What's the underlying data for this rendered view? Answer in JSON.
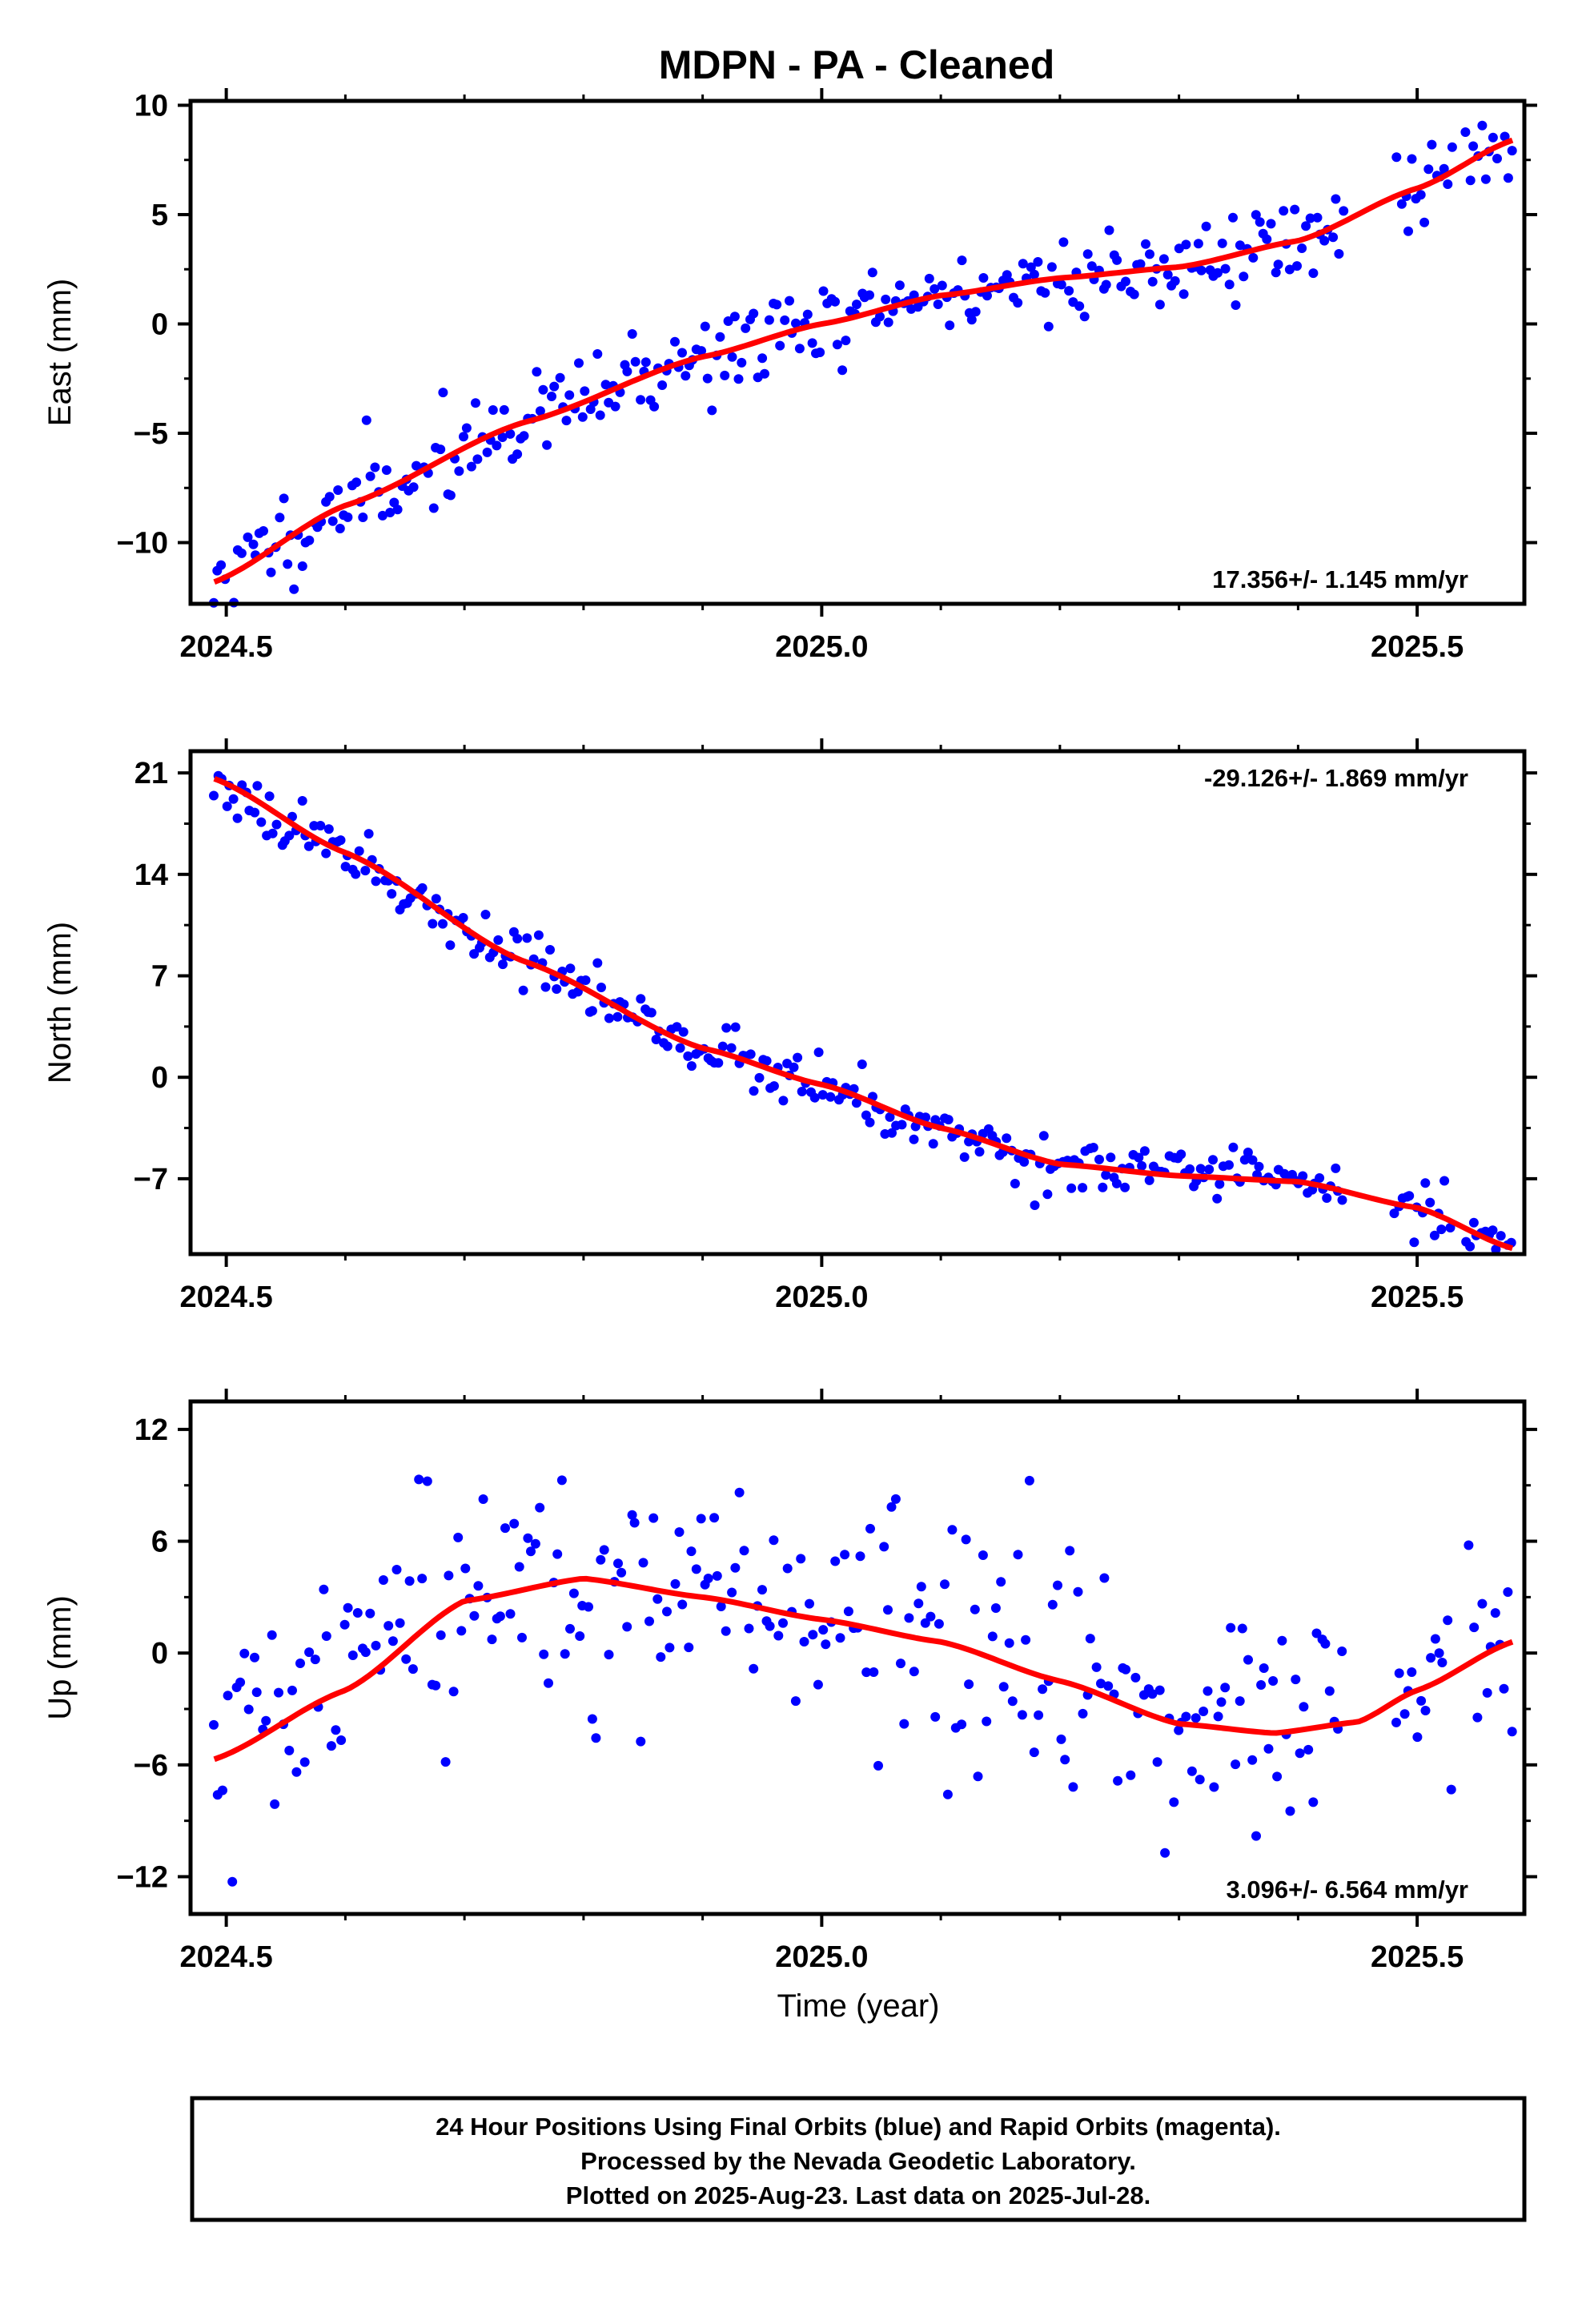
{
  "title": "MDPN  - PA - Cleaned",
  "xlabel": "Time (year)",
  "footer": {
    "line1": "24 Hour Positions Using Final Orbits (blue) and Rapid Orbits (magenta).",
    "line2": "Processed by the Nevada Geodetic Laboratory.",
    "line3": "Plotted on 2025-Aug-23. Last data on 2025-Jul-28."
  },
  "colors": {
    "points": "#0000ff",
    "fit": "#ff0000",
    "frame": "#000000"
  },
  "chart_data": [
    {
      "type": "scatter",
      "name": "east",
      "ylabel": "East (mm)",
      "rate_label": "17.356+/- 1.145 mm/yr",
      "rate_position": "bottom-right",
      "xlim": [
        2024.47,
        2025.59
      ],
      "ylim": [
        -12.8,
        10.2
      ],
      "xticks": [
        2024.5,
        2025.0,
        2025.5
      ],
      "xtick_labels": [
        "2024.5",
        "2025.0",
        "2025.5"
      ],
      "yticks": [
        -10,
        -5,
        0,
        5,
        10
      ],
      "ytick_labels": [
        "−10",
        "−5",
        "0",
        "5",
        "10"
      ],
      "fit_x": [
        2024.49,
        2024.6,
        2024.75,
        2024.9,
        2025.0,
        2025.1,
        2025.2,
        2025.3,
        2025.4,
        2025.5,
        2025.58
      ],
      "fit_y": [
        -11.8,
        -8.3,
        -4.5,
        -1.5,
        0.0,
        1.3,
        2.1,
        2.6,
        3.8,
        6.2,
        8.4
      ],
      "noise": 1.0,
      "points_count": 340,
      "gaps": [
        [
          2025.44,
          2025.48
        ],
        [
          2025.53,
          2025.54
        ]
      ],
      "seed": 11
    },
    {
      "type": "scatter",
      "name": "north",
      "ylabel": "North (mm)",
      "rate_label": "-29.126+/- 1.869 mm/yr",
      "rate_position": "top-right",
      "xlim": [
        2024.47,
        2025.59
      ],
      "ylim": [
        -12.2,
        22.5
      ],
      "xticks": [
        2024.5,
        2025.0,
        2025.5
      ],
      "xtick_labels": [
        "2024.5",
        "2025.0",
        "2025.5"
      ],
      "yticks": [
        -7,
        0,
        7,
        14,
        21
      ],
      "ytick_labels": [
        "−7",
        "0",
        "7",
        "14",
        "21"
      ],
      "fit_x": [
        2024.49,
        2024.6,
        2024.75,
        2024.9,
        2025.0,
        2025.1,
        2025.2,
        2025.3,
        2025.4,
        2025.5,
        2025.58
      ],
      "fit_y": [
        20.6,
        15.5,
        8.0,
        2.0,
        -0.5,
        -3.5,
        -6.0,
        -6.8,
        -7.2,
        -9.0,
        -11.8
      ],
      "noise": 0.9,
      "points_count": 330,
      "gaps": [
        [
          2025.44,
          2025.48
        ],
        [
          2025.53,
          2025.54
        ]
      ],
      "seed": 23
    },
    {
      "type": "scatter",
      "name": "up",
      "ylabel": "Up (mm)",
      "rate_label": "3.096+/- 6.564 mm/yr",
      "rate_position": "bottom-right",
      "xlim": [
        2024.47,
        2025.59
      ],
      "ylim": [
        -14.0,
        13.5
      ],
      "xticks": [
        2024.5,
        2025.0,
        2025.5
      ],
      "xtick_labels": [
        "2024.5",
        "2025.0",
        "2025.5"
      ],
      "yticks": [
        -12,
        -6,
        0,
        6,
        12
      ],
      "ytick_labels": [
        "−12",
        "−6",
        "0",
        "6",
        "12"
      ],
      "fit_x": [
        2024.49,
        2024.6,
        2024.7,
        2024.8,
        2024.9,
        2025.0,
        2025.1,
        2025.2,
        2025.3,
        2025.38,
        2025.45,
        2025.5,
        2025.58
      ],
      "fit_y": [
        -5.7,
        -2.0,
        2.8,
        4.0,
        3.0,
        1.8,
        0.6,
        -1.5,
        -3.8,
        -4.3,
        -3.7,
        -2.0,
        0.6
      ],
      "noise": 3.4,
      "points_count": 300,
      "gaps": [
        [
          2025.44,
          2025.48
        ],
        [
          2025.53,
          2025.54
        ]
      ],
      "seed": 37
    }
  ]
}
